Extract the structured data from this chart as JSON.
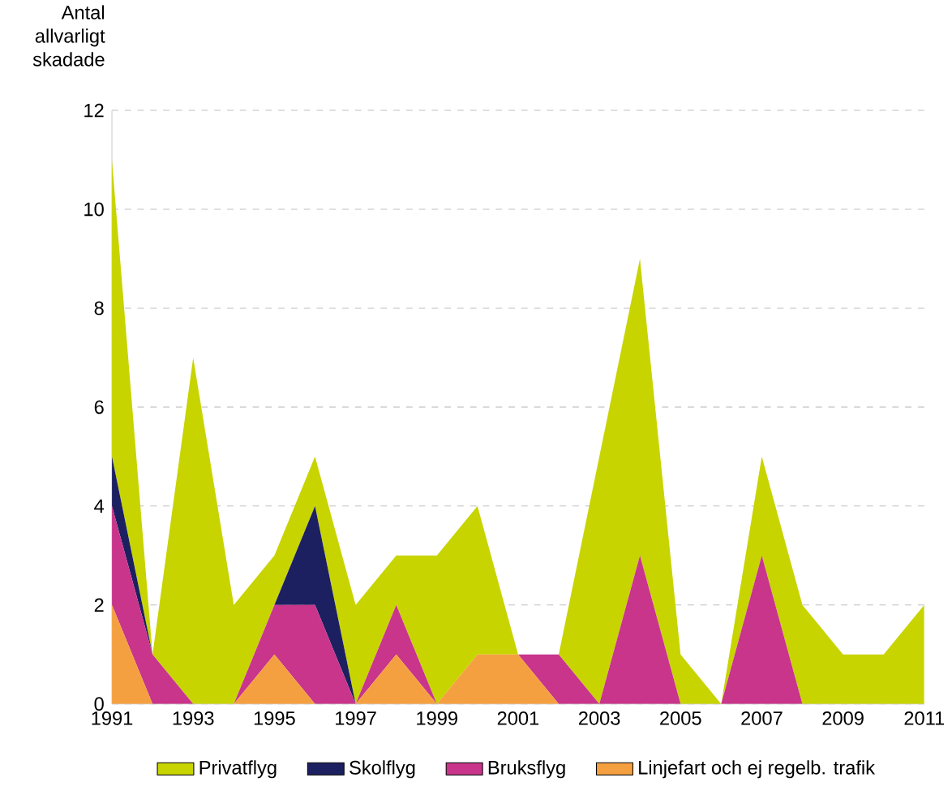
{
  "chart_data": {
    "type": "area",
    "stacked": true,
    "ylabel": "Antal allvarligt skadade",
    "x": [
      1991,
      1992,
      1993,
      1994,
      1995,
      1996,
      1997,
      1998,
      1999,
      2000,
      2001,
      2002,
      2003,
      2004,
      2005,
      2006,
      2007,
      2008,
      2009,
      2010,
      2011
    ],
    "series": [
      {
        "name": "Linjefart och ej regelb. trafik",
        "color": "#f5a040",
        "values": [
          2,
          0,
          0,
          0,
          1,
          0,
          0,
          1,
          0,
          1,
          1,
          0,
          0,
          0,
          0,
          0,
          0,
          0,
          0,
          0,
          0
        ]
      },
      {
        "name": "Bruksflyg",
        "color": "#c8358a",
        "values": [
          2,
          1,
          0,
          0,
          1,
          2,
          0,
          1,
          0,
          0,
          0,
          1,
          0,
          3,
          0,
          0,
          3,
          0,
          0,
          0,
          0
        ]
      },
      {
        "name": "Skolflyg",
        "color": "#1c2060",
        "values": [
          1,
          0,
          0,
          0,
          0,
          2,
          0,
          0,
          0,
          0,
          0,
          0,
          0,
          0,
          0,
          0,
          0,
          0,
          0,
          0,
          0
        ]
      },
      {
        "name": "Privatflyg",
        "color": "#c8d400",
        "values": [
          6,
          0,
          7,
          2,
          1,
          1,
          2,
          1,
          3,
          3,
          0,
          0,
          5,
          6,
          1,
          0,
          2,
          2,
          1,
          1,
          2
        ]
      }
    ],
    "xlim": [
      1991,
      2011
    ],
    "xticks": [
      1991,
      1993,
      1995,
      1997,
      1999,
      2001,
      2003,
      2005,
      2007,
      2009,
      2011
    ],
    "ylim": [
      0,
      12
    ],
    "yticks": [
      0,
      2,
      4,
      6,
      8,
      10,
      12
    ],
    "grid": "y",
    "legend": "bottom"
  }
}
